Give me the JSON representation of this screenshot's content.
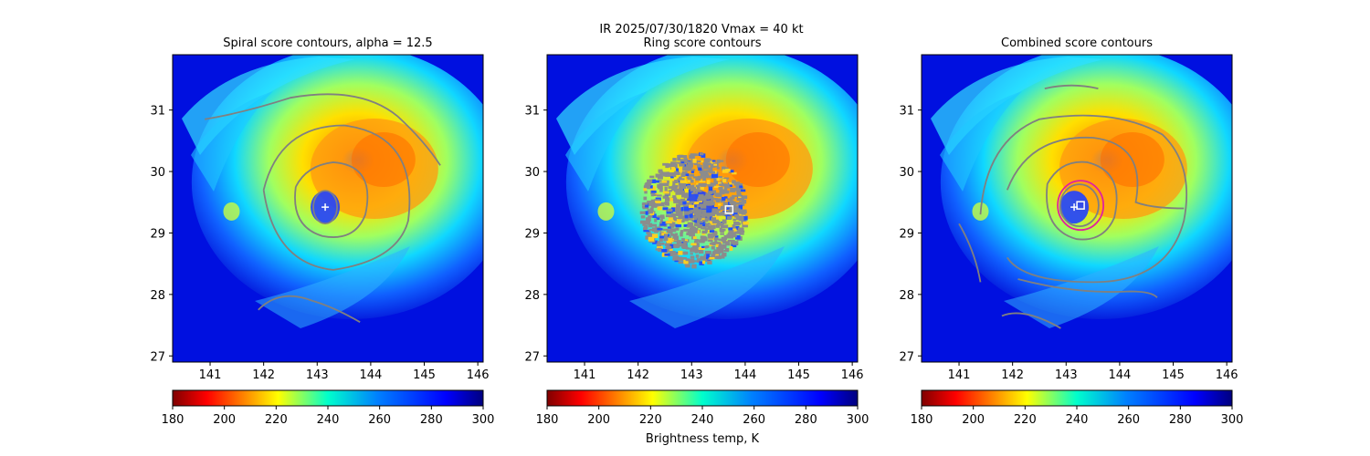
{
  "figure": {
    "suptitle_line1": "IR  2025/07/30/1820    Vmax = 40 kt",
    "colorbar_label": "Brightness temp, K"
  },
  "chart_data": [
    {
      "type": "heatmap",
      "title": "Spiral score contours, alpha = 12.5",
      "xlim": [
        140.3,
        146.1
      ],
      "ylim": [
        26.9,
        31.9
      ],
      "xticks": [
        141,
        142,
        143,
        144,
        145,
        146
      ],
      "yticks": [
        27,
        28,
        29,
        30,
        31
      ],
      "center_marker": {
        "kind": "plus",
        "lon": 143.15,
        "lat": 29.42
      },
      "contour_color": "#808080",
      "colormap": "jet_r",
      "colorbar": {
        "range": [
          180,
          300
        ],
        "ticks": [
          180,
          200,
          220,
          240,
          260,
          280,
          300
        ]
      }
    },
    {
      "type": "heatmap",
      "title": "Ring score contours",
      "xlim": [
        140.3,
        146.1
      ],
      "ylim": [
        26.9,
        31.9
      ],
      "xticks": [
        141,
        142,
        143,
        144,
        145,
        146
      ],
      "yticks": [
        27,
        28,
        29,
        30,
        31
      ],
      "center_marker": {
        "kind": "square",
        "lon": 143.7,
        "lat": 29.38
      },
      "contour_color": "#808080",
      "colormap": "jet_r",
      "colorbar": {
        "range": [
          180,
          300
        ],
        "ticks": [
          180,
          200,
          220,
          240,
          260,
          280,
          300
        ]
      }
    },
    {
      "type": "heatmap",
      "title": "Combined score contours",
      "xlim": [
        140.3,
        146.1
      ],
      "ylim": [
        26.9,
        31.9
      ],
      "xticks": [
        141,
        142,
        143,
        144,
        145,
        146
      ],
      "yticks": [
        27,
        28,
        29,
        30,
        31
      ],
      "center_marker": {
        "kind": "square",
        "lon": 143.27,
        "lat": 29.45
      },
      "secondary_marker": {
        "kind": "plus",
        "lon": 143.15,
        "lat": 29.42
      },
      "highlight_contour_color": "#e020a0",
      "contour_color": "#808080",
      "colormap": "jet_r",
      "colorbar": {
        "range": [
          180,
          300
        ],
        "ticks": [
          180,
          200,
          220,
          240,
          260,
          280,
          300
        ]
      }
    }
  ]
}
